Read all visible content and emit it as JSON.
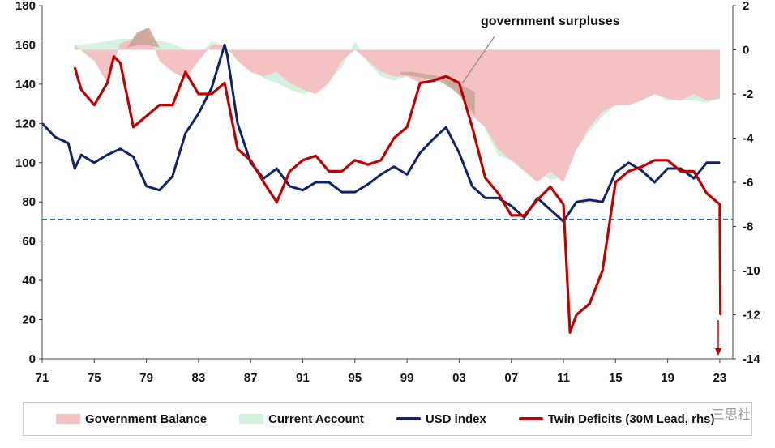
{
  "chart_data": {
    "type": "area",
    "annotation": "government surpluses",
    "reference_line_left_value": 71,
    "xlim": [
      1971,
      2024
    ],
    "ylim_left": [
      0,
      180
    ],
    "ylim_right": [
      -14,
      2
    ],
    "x_ticks": [
      "71",
      "75",
      "79",
      "83",
      "87",
      "91",
      "95",
      "99",
      "03",
      "07",
      "11",
      "15",
      "19",
      "23"
    ],
    "left_ticks": [
      "0",
      "20",
      "40",
      "60",
      "80",
      "100",
      "120",
      "140",
      "160",
      "180"
    ],
    "right_ticks": [
      "2",
      "0",
      "-2",
      "-4",
      "-6",
      "-8",
      "-10",
      "-12",
      "-14"
    ],
    "colors": {
      "government_balance": "#f4c2c2",
      "current_account": "#d5f0df",
      "surplus_overlap": "#c6a396",
      "usd_index": "#0d2466",
      "twin_deficits": "#c00000",
      "reference_line": "#1f6fb5"
    },
    "series": [
      {
        "name": "Government Balance",
        "axis": "right",
        "kind": "area",
        "x": [
          1973.5,
          1975,
          1976,
          1977,
          1978,
          1979,
          1980,
          1981,
          1982,
          1983,
          1984,
          1985,
          1986,
          1987,
          1988,
          1989,
          1990,
          1991,
          1992,
          1993,
          1994,
          1995,
          1996,
          1997,
          1998,
          1999,
          2000,
          2001,
          2002,
          2003,
          2004,
          2005,
          2006,
          2007,
          2008,
          2009,
          2010,
          2011,
          2012,
          2013,
          2014,
          2015,
          2016,
          2017,
          2018,
          2019,
          2020,
          2021,
          2022,
          2023
        ],
        "values": [
          0.2,
          -0.5,
          -1.5,
          0.3,
          0.5,
          1.0,
          -0.5,
          -1.0,
          -1.3,
          -0.5,
          0.2,
          0.2,
          -0.5,
          -1.0,
          -1.2,
          -1.0,
          -1.5,
          -1.8,
          -2.0,
          -1.5,
          -0.5,
          0.0,
          -0.5,
          -1.0,
          -1.2,
          -1.2,
          -1.5,
          -1.2,
          -1.4,
          -2.0,
          -3.0,
          -3.5,
          -4.5,
          -5.0,
          -5.5,
          -6.0,
          -5.5,
          -6.0,
          -4.5,
          -3.5,
          -2.8,
          -2.5,
          -2.5,
          -2.3,
          -2.0,
          -2.2,
          -2.3,
          -2.0,
          -2.3,
          -2.2
        ]
      },
      {
        "name": "Current Account",
        "axis": "right",
        "kind": "area",
        "x": [
          1973.5,
          1975,
          1977,
          1979,
          1981,
          1983,
          1984,
          1985,
          1986,
          1987,
          1988,
          1989,
          1990,
          1991,
          1992,
          1993,
          1994,
          1995,
          1996,
          1997,
          1998,
          1999,
          2000,
          2001,
          2002,
          2003,
          2004,
          2005,
          2006,
          2007,
          2008,
          2009,
          2010,
          2011,
          2012,
          2013,
          2014,
          2015,
          2016,
          2017,
          2018,
          2019,
          2020,
          2021,
          2022,
          2023
        ],
        "values": [
          0.2,
          0.3,
          0.5,
          0.5,
          0.3,
          -0.3,
          0.4,
          0.2,
          -0.5,
          -0.8,
          -1.3,
          -1.5,
          -1.8,
          -2.0,
          -1.8,
          -1.4,
          -0.8,
          0.4,
          -0.6,
          -1.2,
          -1.4,
          -1.2,
          -1.2,
          -1.3,
          -1.6,
          -1.8,
          -2.4,
          -3.6,
          -4.8,
          -5.0,
          -5.2,
          -5.5,
          -5.9,
          -5.8,
          -4.5,
          -3.7,
          -3.0,
          -2.5,
          -2.5,
          -2.3,
          -2.0,
          -2.3,
          -2.3,
          -2.3,
          -2.4,
          -2.2
        ]
      },
      {
        "name": "USD index",
        "axis": "left",
        "kind": "line",
        "x": [
          1971,
          1972,
          1973,
          1973.5,
          1974,
          1975,
          1976,
          1977,
          1978,
          1979,
          1980,
          1981,
          1982,
          1983,
          1984,
          1985,
          1985.2,
          1986,
          1987,
          1988,
          1989,
          1990,
          1991,
          1992,
          1993,
          1994,
          1995,
          1996,
          1997,
          1998,
          1999,
          2000,
          2001,
          2002,
          2003,
          2004,
          2005,
          2006,
          2007,
          2008,
          2009,
          2010,
          2011,
          2012,
          2013,
          2014,
          2015,
          2016,
          2017,
          2018,
          2019,
          2020,
          2021,
          2022,
          2023
        ],
        "values": [
          120,
          113,
          110,
          97,
          104,
          100,
          104,
          107,
          103,
          88,
          86,
          93,
          115,
          125,
          138,
          160,
          155,
          120,
          100,
          92,
          97,
          88,
          86,
          90,
          90,
          85,
          85,
          89,
          94,
          98,
          94,
          105,
          112,
          118,
          105,
          88,
          82,
          82,
          78,
          72,
          82,
          76,
          70,
          80,
          81,
          80,
          95,
          100,
          96,
          90,
          97,
          97,
          92,
          100,
          100
        ]
      },
      {
        "name": "Twin Deficits (30M Lead, rhs)",
        "axis": "right",
        "kind": "line",
        "x": [
          1973.5,
          1974,
          1975,
          1976,
          1976.5,
          1977,
          1978,
          1979,
          1980,
          1981,
          1982,
          1983,
          1984,
          1985,
          1986,
          1987,
          1988,
          1989,
          1990,
          1991,
          1992,
          1993,
          1994,
          1995,
          1996,
          1997,
          1998,
          1999,
          2000,
          2001,
          2002,
          2003,
          2004,
          2005,
          2006,
          2007,
          2008,
          2009,
          2010,
          2011,
          2011.5,
          2012,
          2013,
          2014,
          2015,
          2016,
          2017,
          2018,
          2019,
          2020,
          2021,
          2022,
          2023,
          2023.05
        ],
        "values": [
          -0.8,
          -1.8,
          -2.5,
          -1.5,
          -0.3,
          -0.6,
          -3.5,
          -3.0,
          -2.5,
          -2.5,
          -1.0,
          -2.0,
          -2.0,
          -1.5,
          -4.5,
          -5.0,
          -6.0,
          -6.9,
          -5.5,
          -5.0,
          -4.8,
          -5.5,
          -5.5,
          -5.0,
          -5.2,
          -5.0,
          -4.0,
          -3.5,
          -1.5,
          -1.4,
          -1.2,
          -1.5,
          -3.5,
          -5.8,
          -6.5,
          -7.5,
          -7.5,
          -6.8,
          -6.2,
          -7.0,
          -12.8,
          -12.0,
          -11.5,
          -10.0,
          -6.0,
          -5.5,
          -5.3,
          -5.0,
          -5.0,
          -5.5,
          -5.5,
          -6.5,
          -7.0,
          -12.0
        ]
      }
    ]
  },
  "legend": {
    "items": [
      {
        "label": "Government Balance"
      },
      {
        "label": "Current Account"
      },
      {
        "label": "USD index"
      },
      {
        "label": "Twin Deficits (30M Lead, rhs)"
      }
    ]
  },
  "watermark": "三思社"
}
